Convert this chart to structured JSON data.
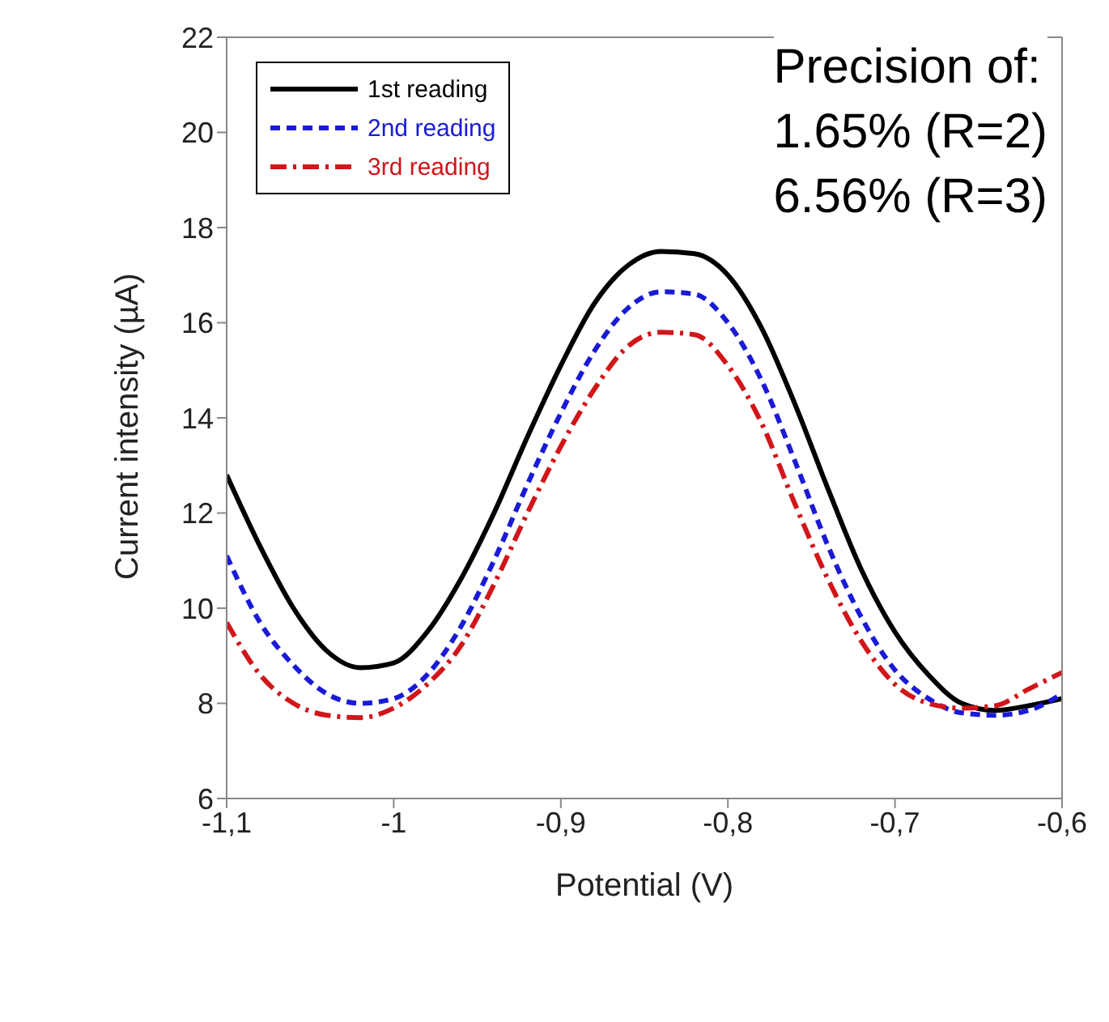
{
  "chart_data": {
    "type": "line",
    "xlabel": "Potential (V)",
    "ylabel": "Current intensity (µA)",
    "x": [
      -1.1,
      -1.08,
      -1.06,
      -1.04,
      -1.02,
      -1.0,
      -0.98,
      -0.96,
      -0.94,
      -0.92,
      -0.9,
      -0.88,
      -0.86,
      -0.84,
      -0.82,
      -0.8,
      -0.78,
      -0.76,
      -0.74,
      -0.72,
      -0.7,
      -0.68,
      -0.66,
      -0.64,
      -0.62,
      -0.6
    ],
    "series": [
      {
        "name": "1st reading",
        "color": "#000000",
        "line_style": "solid",
        "values": [
          12.8,
          11.3,
          10.0,
          9.1,
          8.75,
          8.85,
          9.5,
          10.6,
          12.0,
          13.6,
          15.1,
          16.4,
          17.2,
          17.5,
          17.45,
          17.0,
          15.9,
          14.3,
          12.5,
          10.8,
          9.5,
          8.6,
          8.0,
          7.85,
          7.95,
          8.1
        ]
      },
      {
        "name": "2nd reading",
        "color": "#1a1ad6",
        "line_style": "dashed",
        "values": [
          11.1,
          9.7,
          8.8,
          8.2,
          8.0,
          8.1,
          8.6,
          9.6,
          11.0,
          12.6,
          14.1,
          15.4,
          16.3,
          16.65,
          16.6,
          16.0,
          14.8,
          13.1,
          11.3,
          9.8,
          8.7,
          8.1,
          7.8,
          7.75,
          7.85,
          8.2
        ]
      },
      {
        "name": "3rd reading",
        "color": "#d0161a",
        "line_style": "dashdot",
        "values": [
          9.7,
          8.6,
          8.0,
          7.75,
          7.7,
          7.9,
          8.4,
          9.2,
          10.5,
          12.0,
          13.4,
          14.6,
          15.5,
          15.8,
          15.75,
          15.1,
          13.9,
          12.2,
          10.6,
          9.3,
          8.4,
          8.0,
          7.9,
          7.95,
          8.3,
          8.65
        ]
      }
    ],
    "xlim": [
      -1.1,
      -0.6
    ],
    "xticks": [
      {
        "value": -1.1,
        "label": "-1,1"
      },
      {
        "value": -1.0,
        "label": "-1"
      },
      {
        "value": -0.9,
        "label": "-0,9"
      },
      {
        "value": -0.8,
        "label": "-0,8"
      },
      {
        "value": -0.7,
        "label": "-0,7"
      },
      {
        "value": -0.6,
        "label": "-0,6"
      }
    ],
    "ylim": [
      6,
      22
    ],
    "yticks": [
      6,
      8,
      10,
      12,
      14,
      16,
      18,
      20,
      22
    ],
    "grid": false,
    "legend": "top left",
    "marker": "none",
    "annotations": [
      "Precision of:",
      "1.65% (R=2)",
      "6.56% (R=3)"
    ]
  }
}
